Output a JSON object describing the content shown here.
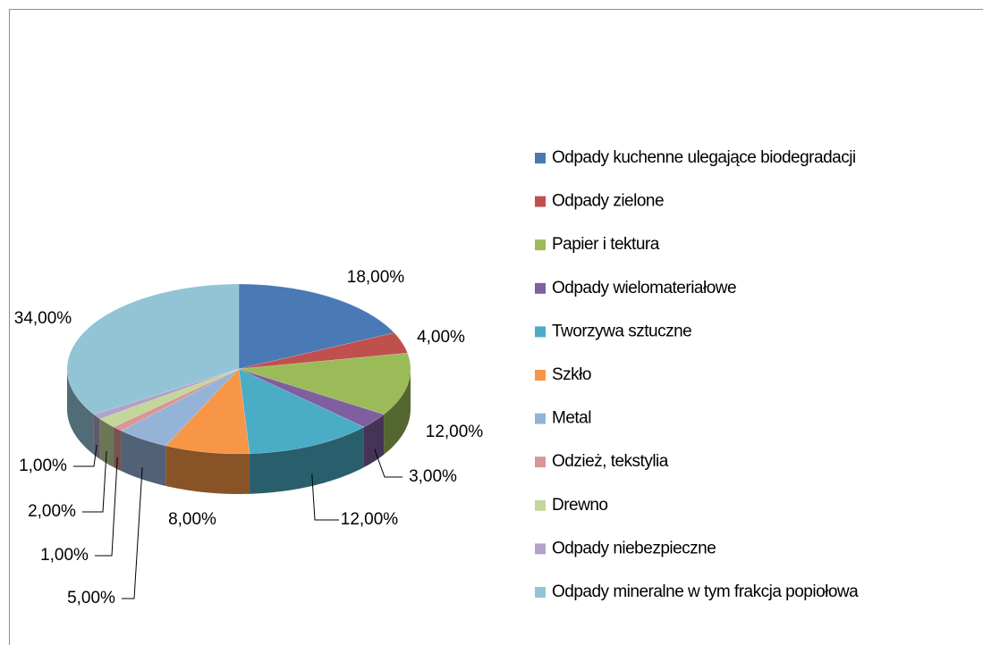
{
  "chart_data": {
    "type": "pie",
    "categories": [
      "Odpady kuchenne ulegające biodegradacji",
      "Odpady zielone",
      "Papier i tektura",
      "Odpady wielomateriałowe",
      "Tworzywa sztuczne",
      "Szkło",
      "Metal",
      "Odzież, tekstylia",
      "Drewno",
      "Odpady niebezpieczne",
      "Odpady mineralne w tym frakcja popiołowa"
    ],
    "values": [
      18,
      4,
      12,
      3,
      12,
      8,
      5,
      1,
      2,
      1,
      34
    ],
    "value_labels": [
      "18,00%",
      "4,00%",
      "12,00%",
      "3,00%",
      "12,00%",
      "8,00%",
      "5,00%",
      "1,00%",
      "2,00%",
      "1,00%",
      "34,00%"
    ],
    "colors": [
      "#4a7ab5",
      "#c0504d",
      "#9bbb59",
      "#7f5f9f",
      "#4bacc6",
      "#f79646",
      "#95b3d7",
      "#d99694",
      "#c3d69b",
      "#b3a2c7",
      "#93c4d6"
    ],
    "legend": "right"
  }
}
